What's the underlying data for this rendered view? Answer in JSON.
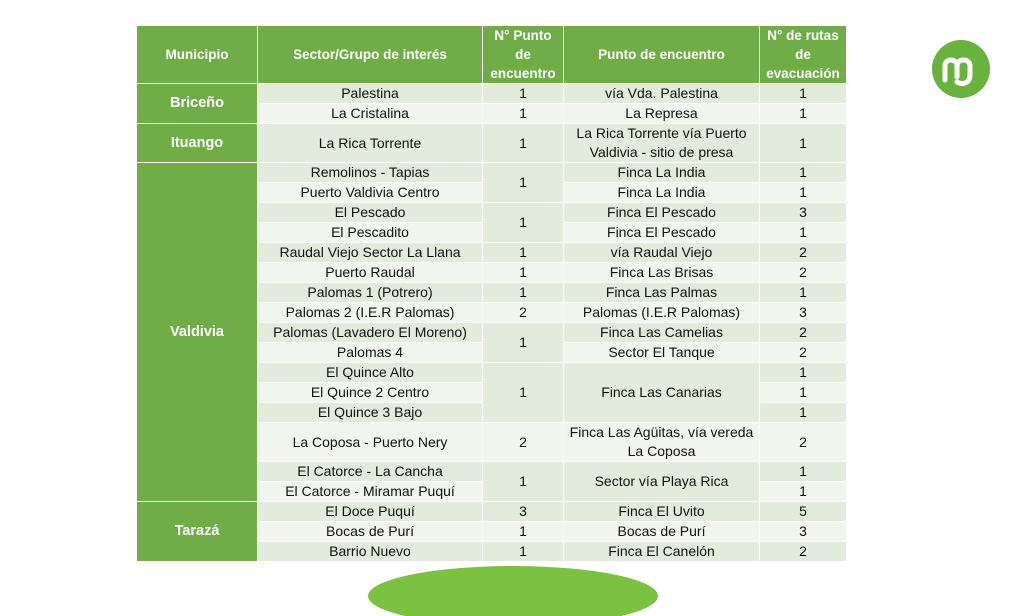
{
  "colors": {
    "header_bg": "#70ad47",
    "row_dark": "#e2ebdc",
    "row_light": "#f1f5ee",
    "logo": "#6ab23e"
  },
  "logo": {
    "icon": "m-letter-logo-icon"
  },
  "table": {
    "headers": {
      "municipio": "Municipio",
      "sector": "Sector/Grupo de interés",
      "punto_num_l1": "N° Punto",
      "punto_num_l2": "de",
      "punto_num_l3": "encuentro",
      "punto": "Punto de encuentro",
      "rutas_l1": "N° de rutas",
      "rutas_l2": "de",
      "rutas_l3": "evacuación"
    },
    "municipios": {
      "briceno": "Briceño",
      "ituango": "Ituango",
      "valdivia": "Valdivia",
      "taraza": "Tarazá"
    },
    "rows": [
      {
        "sector": "Palestina",
        "num": "1",
        "punto": "vía Vda. Palestina",
        "rutas": "1"
      },
      {
        "sector": "La Cristalina",
        "num": "1",
        "punto": "La Represa",
        "rutas": "1"
      },
      {
        "sector": "La Rica Torrente",
        "num": "1",
        "punto": "La Rica Torrente vía Puerto Valdivia - sitio de presa",
        "rutas": "1"
      },
      {
        "sector": "Remolinos - Tapias",
        "num": "1",
        "punto": "Finca La India",
        "rutas": "1"
      },
      {
        "sector": "Puerto Valdivia Centro",
        "num": "",
        "punto": "Finca La India",
        "rutas": "1"
      },
      {
        "sector": "El Pescado",
        "num": "1",
        "punto": "Finca El Pescado",
        "rutas": "3"
      },
      {
        "sector": "El Pescadito",
        "num": "",
        "punto": "Finca El Pescado",
        "rutas": "1"
      },
      {
        "sector": "Raudal Viejo Sector La Llana",
        "num": "1",
        "punto": "vía Raudal Viejo",
        "rutas": "2"
      },
      {
        "sector": "Puerto Raudal",
        "num": "1",
        "punto": "Finca Las Brisas",
        "rutas": "2"
      },
      {
        "sector": "Palomas 1 (Potrero)",
        "num": "1",
        "punto": "Finca Las Palmas",
        "rutas": "1"
      },
      {
        "sector": "Palomas 2 (I.E.R Palomas)",
        "num": "2",
        "punto": "Palomas (I.E.R Palomas)",
        "rutas": "3"
      },
      {
        "sector": "Palomas (Lavadero El Moreno)",
        "num": "1",
        "punto": "Finca Las Camelias",
        "rutas": "2"
      },
      {
        "sector": "Palomas 4",
        "num": "",
        "punto": "Sector El Tanque",
        "rutas": "2"
      },
      {
        "sector": "El Quince Alto",
        "num": "1",
        "punto": "Finca Las Canarias",
        "rutas": "1"
      },
      {
        "sector": "El Quince 2 Centro",
        "num": "",
        "punto": "",
        "rutas": "1"
      },
      {
        "sector": "El Quince 3 Bajo",
        "num": "",
        "punto": "",
        "rutas": "1"
      },
      {
        "sector": "La Coposa - Puerto Nery",
        "num": "2",
        "punto": "Finca Las Agüitas, vía vereda La Coposa",
        "rutas": "2"
      },
      {
        "sector": "El Catorce - La Cancha",
        "num": "1",
        "punto": "Sector vía Playa Rica",
        "rutas": "1"
      },
      {
        "sector": "El Catorce - Miramar Puquí",
        "num": "",
        "punto": "",
        "rutas": "1"
      },
      {
        "sector": "El Doce Puquí",
        "num": "3",
        "punto": "Finca El Uvito",
        "rutas": "5"
      },
      {
        "sector": "Bocas de Purí",
        "num": "1",
        "punto": "Bocas de Purí",
        "rutas": "3"
      },
      {
        "sector": "Barrio Nuevo",
        "num": "1",
        "punto": "Finca El Canelón",
        "rutas": "2"
      }
    ]
  }
}
